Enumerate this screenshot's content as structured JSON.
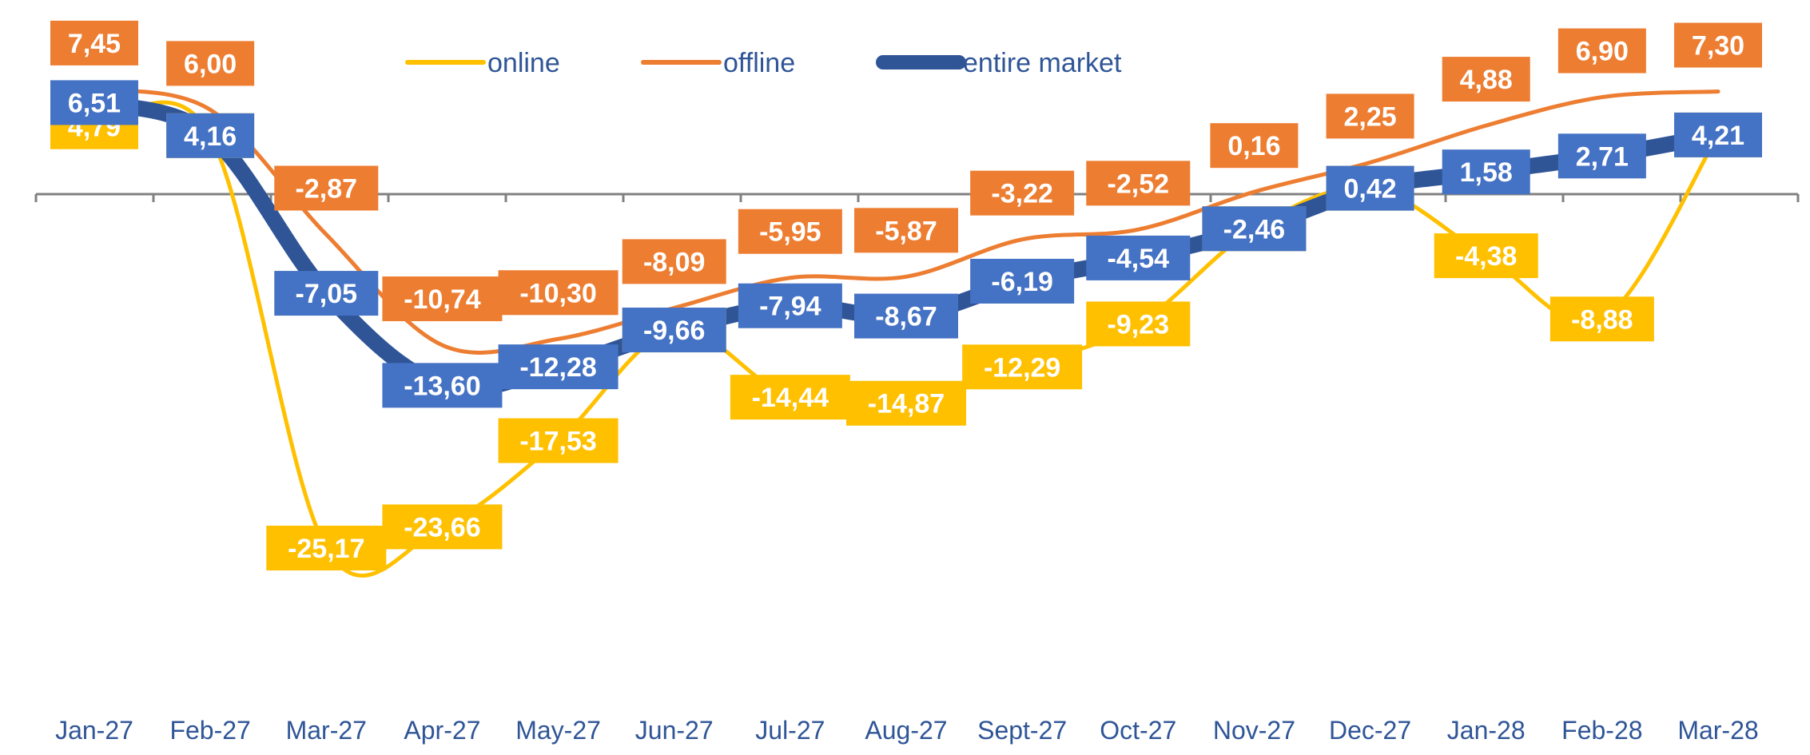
{
  "chart_data": {
    "type": "line",
    "categories": [
      "Jan-27",
      "Feb-27",
      "Mar-27",
      "Apr-27",
      "May-27",
      "Jun-27",
      "Jul-27",
      "Aug-27",
      "Sept-27",
      "Oct-27",
      "Nov-27",
      "Dec-27",
      "Jan-28",
      "Feb-28",
      "Mar-28"
    ],
    "series": [
      {
        "name": "online",
        "color": "#FFC000",
        "labels": [
          "4,79",
          "4,16",
          "-25,17",
          "-23,66",
          "-17,53",
          "-9,66",
          "-14,44",
          "-14,87",
          "-12,29",
          "-9,23",
          "-2,46",
          "0,42",
          "-4,38",
          "-8,88",
          "4,21"
        ],
        "values": [
          4.79,
          4.16,
          -25.17,
          -23.66,
          -17.53,
          -9.66,
          -14.44,
          -14.87,
          -12.29,
          -9.23,
          -2.46,
          0.42,
          -4.38,
          -8.88,
          4.21
        ]
      },
      {
        "name": "offline",
        "color": "#ED7D31",
        "labels": [
          "7,45",
          "6,00",
          "-2,87",
          "-10,74",
          "-10,30",
          "-8,09",
          "-5,95",
          "-5,87",
          "-3,22",
          "-2,52",
          "0,16",
          "2,25",
          "4,88",
          "6,90",
          "7,30"
        ],
        "values": [
          7.45,
          6.0,
          -2.87,
          -10.74,
          -10.3,
          -8.09,
          -5.95,
          -5.87,
          -3.22,
          -2.52,
          0.16,
          2.25,
          4.88,
          6.9,
          7.3
        ]
      },
      {
        "name": "entire market",
        "color": "#2F5597",
        "labels": [
          "6,51",
          "4,16",
          "-7,05",
          "-13,60",
          "-12,28",
          "-9,66",
          "-7,94",
          "-8,67",
          "-6,19",
          "-4,54",
          "-2,46",
          "0,42",
          "1,58",
          "2,71",
          "4,21"
        ],
        "values": [
          6.51,
          4.16,
          -7.05,
          -13.6,
          -12.28,
          -9.66,
          -7.94,
          -8.67,
          -6.19,
          -4.54,
          -2.46,
          0.42,
          1.58,
          2.71,
          4.21
        ]
      }
    ],
    "title": "",
    "xlabel": "",
    "ylabel": "",
    "legend": "top",
    "grid": false,
    "label_box_colors": {
      "online": "#FFC000",
      "offline": "#ED7D31",
      "entire market": "#4472C4"
    }
  }
}
